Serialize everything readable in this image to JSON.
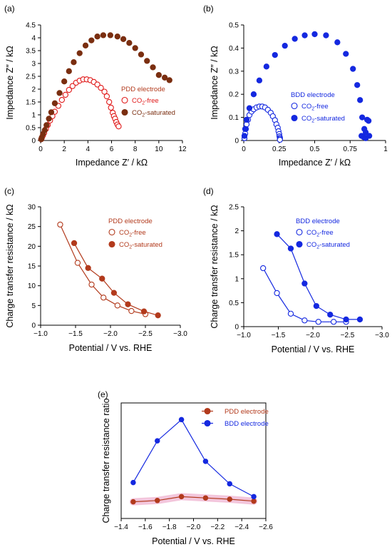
{
  "colors": {
    "pdd": "#b23a1c",
    "pdd_dark": "#7a2e10",
    "bdd": "#1428e0",
    "pdd_bright": "#e01818"
  },
  "chart_data": [
    {
      "panel": "(a)",
      "type": "scatter",
      "xlabel": "Impedance Z′ / kΩ",
      "ylabel": "Impedance Z″ / kΩ",
      "xlim": [
        0,
        12
      ],
      "ylim": [
        0,
        4.5
      ],
      "xticks": [
        "0",
        "2",
        "4",
        "6",
        "8",
        "10",
        "12"
      ],
      "yticks": [
        "0",
        "0.5",
        "1",
        "1.5",
        "2",
        "2.5",
        "3",
        "3.5",
        "4",
        "4.5"
      ],
      "legend_title": "PDD electrode",
      "series": [
        {
          "name": "CO₂-free",
          "filled": false,
          "x": [
            0.05,
            0.1,
            0.2,
            0.3,
            0.45,
            0.6,
            0.8,
            1.0,
            1.2,
            1.5,
            1.8,
            2.1,
            2.4,
            2.7,
            3.0,
            3.3,
            3.6,
            3.9,
            4.2,
            4.5,
            4.8,
            5.1,
            5.4,
            5.6,
            5.8,
            5.95,
            6.1,
            6.2,
            6.3,
            6.4,
            6.5,
            6.6
          ],
          "y": [
            0.05,
            0.1,
            0.2,
            0.3,
            0.45,
            0.6,
            0.78,
            0.95,
            1.12,
            1.35,
            1.58,
            1.78,
            1.97,
            2.12,
            2.25,
            2.33,
            2.38,
            2.38,
            2.35,
            2.28,
            2.18,
            2.05,
            1.9,
            1.72,
            1.5,
            1.28,
            1.08,
            0.95,
            0.85,
            0.72,
            0.62,
            0.55
          ]
        },
        {
          "name": "CO₂-saturated",
          "filled": true,
          "x": [
            0.05,
            0.1,
            0.2,
            0.35,
            0.5,
            0.7,
            0.9,
            1.2,
            1.6,
            2.0,
            2.4,
            2.8,
            3.3,
            3.8,
            4.3,
            4.8,
            5.3,
            5.9,
            6.5,
            7.0,
            7.5,
            8.0,
            8.5,
            9.0,
            9.5,
            10.0,
            10.5,
            10.9
          ],
          "y": [
            0.05,
            0.12,
            0.25,
            0.4,
            0.6,
            0.85,
            1.1,
            1.45,
            1.85,
            2.3,
            2.7,
            3.05,
            3.4,
            3.7,
            3.9,
            4.05,
            4.1,
            4.1,
            4.05,
            3.95,
            3.8,
            3.6,
            3.35,
            3.1,
            2.85,
            2.55,
            2.45,
            2.35
          ]
        }
      ]
    },
    {
      "panel": "(b)",
      "type": "scatter",
      "xlabel": "Impedance Z′ / kΩ",
      "ylabel": "Impedance Z″ / kΩ",
      "xlim": [
        0,
        1
      ],
      "ylim": [
        0,
        0.5
      ],
      "xticks": [
        "0",
        "0.25",
        "0.5",
        "0.75",
        "1"
      ],
      "yticks": [
        "0",
        "0.1",
        "0.2",
        "0.3",
        "0.4",
        "0.5"
      ],
      "legend_title": "BDD electrode",
      "series": [
        {
          "name": "CO₂-free",
          "filled": false,
          "x": [
            0.005,
            0.01,
            0.015,
            0.02,
            0.03,
            0.04,
            0.055,
            0.07,
            0.09,
            0.11,
            0.13,
            0.15,
            0.17,
            0.19,
            0.205,
            0.22,
            0.23,
            0.24,
            0.245,
            0.25,
            0.252,
            0.255,
            0.255,
            0.255
          ],
          "y": [
            0.01,
            0.03,
            0.05,
            0.07,
            0.09,
            0.11,
            0.125,
            0.135,
            0.143,
            0.147,
            0.147,
            0.143,
            0.133,
            0.12,
            0.105,
            0.088,
            0.07,
            0.055,
            0.04,
            0.028,
            0.018,
            0.012,
            0.007,
            0.003
          ]
        },
        {
          "name": "CO₂-saturated",
          "filled": true,
          "x": [
            0.005,
            0.01,
            0.02,
            0.04,
            0.07,
            0.11,
            0.16,
            0.22,
            0.29,
            0.36,
            0.43,
            0.5,
            0.58,
            0.66,
            0.72,
            0.77,
            0.8,
            0.82,
            0.835,
            0.85,
            0.86,
            0.87,
            0.88,
            0.885,
            0.83,
            0.845,
            0.86
          ],
          "y": [
            0.02,
            0.05,
            0.09,
            0.14,
            0.2,
            0.26,
            0.32,
            0.37,
            0.41,
            0.44,
            0.455,
            0.46,
            0.455,
            0.425,
            0.375,
            0.31,
            0.24,
            0.175,
            0.1,
            0.05,
            0.035,
            0.09,
            0.085,
            0.02,
            0.02,
            0.015,
            0.01
          ]
        }
      ]
    },
    {
      "panel": "(c)",
      "type": "line",
      "xlabel": "Potential / V vs. RHE",
      "ylabel": "Charge transfer resistance / kΩ",
      "xlim": [
        -1.0,
        -3.0
      ],
      "ylim": [
        0,
        30
      ],
      "xticks": [
        "−1.0",
        "−1.5",
        "−2.0",
        "−2.5",
        "−3.0"
      ],
      "yticks": [
        "0",
        "5",
        "10",
        "15",
        "20",
        "25",
        "30"
      ],
      "legend_title": "PDD electrode",
      "series": [
        {
          "name": "CO₂-free",
          "filled": false,
          "x": [
            -1.28,
            -1.53,
            -1.73,
            -1.9,
            -2.1,
            -2.3,
            -2.5
          ],
          "y": [
            25.5,
            15.8,
            10.3,
            7.0,
            5.0,
            3.6,
            2.8
          ]
        },
        {
          "name": "CO₂-saturated",
          "filled": true,
          "x": [
            -1.48,
            -1.68,
            -1.88,
            -2.05,
            -2.25,
            -2.48,
            -2.68
          ],
          "y": [
            20.8,
            14.5,
            11.8,
            8.2,
            5.3,
            3.5,
            2.5
          ]
        }
      ]
    },
    {
      "panel": "(d)",
      "type": "line",
      "xlabel": "Potential / V vs. RHE",
      "ylabel": "Charge transfer resistance / kΩ",
      "xlim": [
        -1.0,
        -3.0
      ],
      "ylim": [
        0,
        2.5
      ],
      "xticks": [
        "−1.0",
        "−1.5",
        "−2.0",
        "−2.5",
        "−3.0"
      ],
      "yticks": [
        "0",
        "0.5",
        "1",
        "1.5",
        "2",
        "2.5"
      ],
      "legend_title": "BDD electrode",
      "series": [
        {
          "name": "CO₂-free",
          "filled": false,
          "x": [
            -1.28,
            -1.48,
            -1.68,
            -1.88,
            -2.08,
            -2.3,
            -2.48
          ],
          "y": [
            1.22,
            0.7,
            0.27,
            0.13,
            0.1,
            0.1,
            0.1
          ]
        },
        {
          "name": "CO₂-saturated",
          "filled": true,
          "x": [
            -1.48,
            -1.68,
            -1.88,
            -2.05,
            -2.25,
            -2.48,
            -2.68
          ],
          "y": [
            1.93,
            1.63,
            0.9,
            0.43,
            0.25,
            0.15,
            0.15
          ]
        }
      ]
    },
    {
      "panel": "(e)",
      "type": "line",
      "xlabel": "Potential / V vs. RHE",
      "ylabel": "Charge transfer resistance ratio",
      "xlim": [
        -1.4,
        -2.6
      ],
      "ylim": [
        0,
        9
      ],
      "xticks": [
        "−1.4",
        "−1.6",
        "−1.8",
        "−2.0",
        "−2.2",
        "−2.4",
        "−2.6"
      ],
      "yticks": [],
      "series": [
        {
          "name": "PDD electrode",
          "filled": true,
          "x": [
            -1.5,
            -1.7,
            -1.9,
            -2.1,
            -2.3,
            -2.5
          ],
          "y": [
            1.3,
            1.4,
            1.7,
            1.6,
            1.5,
            1.35
          ]
        },
        {
          "name": "BDD electrode",
          "filled": true,
          "x": [
            -1.5,
            -1.7,
            -1.9,
            -2.1,
            -2.3,
            -2.5
          ],
          "y": [
            2.8,
            6.05,
            7.7,
            4.45,
            2.7,
            1.7
          ]
        }
      ]
    }
  ]
}
